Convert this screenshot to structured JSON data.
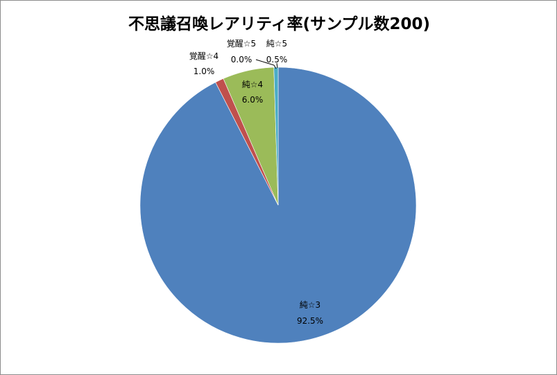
{
  "chart_data": {
    "type": "pie",
    "title": "不思議召喚レアリティ率(サンプル数200)",
    "slices": [
      {
        "name": "純☆3",
        "value": 92.5,
        "label": "92.5%",
        "color": "#4f81bd"
      },
      {
        "name": "覚醒☆4",
        "value": 1.0,
        "label": "1.0%",
        "color": "#c0504d"
      },
      {
        "name": "純☆4",
        "value": 6.0,
        "label": "6.0%",
        "color": "#9bbb59"
      },
      {
        "name": "覚醒☆5",
        "value": 0.0,
        "label": "0.0%",
        "color": "#8064a2"
      },
      {
        "name": "純☆5",
        "value": 0.5,
        "label": "0.5%",
        "color": "#4bacc6"
      }
    ],
    "start_angle": "12 o'clock",
    "direction": "clockwise",
    "legend": "none"
  }
}
